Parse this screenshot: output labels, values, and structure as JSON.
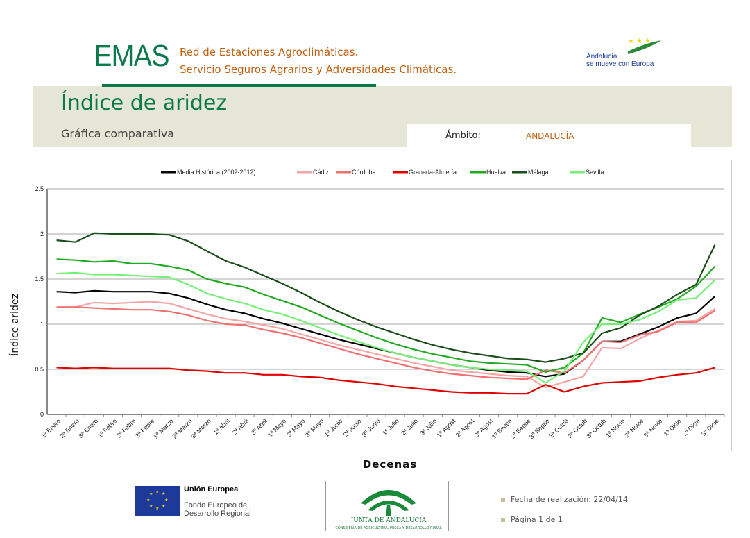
{
  "header": {
    "brand": "EMAS",
    "line1": "Red de Estaciones Agroclimáticas.",
    "line2": "Servicio Seguros Agrarios  y Adversidades Climáticas.",
    "logo_text1": "Andalucía",
    "logo_text2": "se mueve con Europa"
  },
  "page": {
    "title": "Índice de aridez",
    "subtitle": "Gráfica comparativa",
    "ambito_label": "Ámbito:",
    "ambito_value": "ANDALUCÍA"
  },
  "footer": {
    "eu_title": "Unión Europea",
    "eu_fund": "Fondo Europeo de Desarrollo Regional",
    "junta": "JUNTA DE ANDALUCIA",
    "junta_sub": "CONSEJERÍA DE AGRICULTURA, PESCA Y DESARROLLO RURAL",
    "fecha": "Fecha de realización:  22/04/14",
    "pagina": "Página 1 de 1"
  },
  "chart_data": {
    "type": "line",
    "title": "",
    "xlabel": "Decenas",
    "ylabel": "Índice aridez",
    "ylim": [
      0,
      2.5
    ],
    "yticks": [
      0,
      0.5,
      1,
      1.5,
      2,
      2.5
    ],
    "ytick_labels": [
      "0",
      "0.5",
      "1",
      "1.5",
      "2",
      "2.5"
    ],
    "grid": true,
    "legend": "top",
    "categories": [
      "1º Enero",
      "2ª Enero",
      "3ª Enero",
      "1º Febre",
      "2ª Febre",
      "3ª Febre",
      "1º Marzo",
      "2ª Marzo",
      "3ª Marzo",
      "1º Abril",
      "2ª Abril",
      "3ª Abril",
      "1º Mayo",
      "2ª Mayo",
      "3ª Mayo",
      "1º Junio",
      "2ª Junio",
      "3ª Junio",
      "1º Julio",
      "2ª Julio",
      "3ª Julio",
      "1º Agost",
      "2ª Agost",
      "3ª Agost",
      "1º Septie",
      "2ª Septie",
      "3ª Septie",
      "1ª Octub",
      "2ª Octub",
      "3ª Octub",
      "1ª Novie",
      "2ª Novie",
      "3ª Novie",
      "1ª Dicie",
      "2ª Dicie",
      "3ª Dicie"
    ],
    "series": [
      {
        "name": "Media Histórica (2002-2012)",
        "color": "#000000",
        "values": [
          1.36,
          1.35,
          1.37,
          1.36,
          1.36,
          1.36,
          1.34,
          1.29,
          1.22,
          1.16,
          1.12,
          1.06,
          1.01,
          0.95,
          0.89,
          0.83,
          0.78,
          0.73,
          0.68,
          0.63,
          0.59,
          0.55,
          0.52,
          0.49,
          0.47,
          0.46,
          0.42,
          0.45,
          0.6,
          0.81,
          0.81,
          0.89,
          0.97,
          1.07,
          1.12,
          1.31
        ]
      },
      {
        "name": "Cádiz",
        "color": "#f4a6a6",
        "values": [
          1.19,
          1.19,
          1.24,
          1.23,
          1.24,
          1.25,
          1.23,
          1.17,
          1.11,
          1.06,
          1.03,
          0.99,
          0.95,
          0.89,
          0.83,
          0.77,
          0.72,
          0.67,
          0.62,
          0.57,
          0.53,
          0.49,
          0.47,
          0.45,
          0.43,
          0.42,
          0.3,
          0.36,
          0.42,
          0.74,
          0.73,
          0.84,
          0.93,
          1.03,
          1.04,
          1.17
        ]
      },
      {
        "name": "Córdoba",
        "color": "#f07070",
        "values": [
          1.19,
          1.19,
          1.18,
          1.17,
          1.16,
          1.16,
          1.14,
          1.1,
          1.04,
          1.0,
          0.99,
          0.94,
          0.9,
          0.85,
          0.79,
          0.73,
          0.67,
          0.62,
          0.57,
          0.52,
          0.48,
          0.45,
          0.43,
          0.41,
          0.4,
          0.39,
          0.49,
          0.46,
          0.6,
          0.81,
          0.8,
          0.88,
          0.92,
          1.02,
          1.02,
          1.15
        ]
      },
      {
        "name": "Granada-Almería",
        "color": "#e00000",
        "values": [
          0.52,
          0.51,
          0.52,
          0.51,
          0.51,
          0.51,
          0.51,
          0.49,
          0.48,
          0.46,
          0.46,
          0.44,
          0.44,
          0.42,
          0.41,
          0.38,
          0.36,
          0.34,
          0.31,
          0.29,
          0.27,
          0.25,
          0.24,
          0.24,
          0.23,
          0.23,
          0.33,
          0.25,
          0.31,
          0.35,
          0.36,
          0.37,
          0.41,
          0.44,
          0.46,
          0.52
        ]
      },
      {
        "name": "Huelva",
        "color": "#22aa22",
        "values": [
          1.72,
          1.71,
          1.69,
          1.7,
          1.67,
          1.67,
          1.64,
          1.6,
          1.5,
          1.45,
          1.41,
          1.33,
          1.26,
          1.19,
          1.1,
          1.01,
          0.93,
          0.85,
          0.78,
          0.72,
          0.67,
          0.63,
          0.59,
          0.57,
          0.56,
          0.55,
          0.47,
          0.52,
          0.68,
          1.07,
          1.02,
          1.11,
          1.19,
          1.28,
          1.42,
          1.64
        ]
      },
      {
        "name": "Málaga",
        "color": "#1a4d1a",
        "values": [
          1.93,
          1.91,
          2.01,
          2.0,
          2.0,
          2.0,
          1.99,
          1.92,
          1.81,
          1.7,
          1.63,
          1.54,
          1.45,
          1.35,
          1.24,
          1.14,
          1.05,
          0.97,
          0.9,
          0.83,
          0.77,
          0.72,
          0.68,
          0.65,
          0.62,
          0.61,
          0.58,
          0.62,
          0.68,
          0.9,
          0.96,
          1.1,
          1.2,
          1.33,
          1.44,
          1.88
        ]
      },
      {
        "name": "Sevilla",
        "color": "#77ee77",
        "values": [
          1.56,
          1.57,
          1.55,
          1.55,
          1.54,
          1.53,
          1.52,
          1.44,
          1.34,
          1.28,
          1.23,
          1.16,
          1.11,
          1.04,
          0.96,
          0.88,
          0.81,
          0.74,
          0.68,
          0.63,
          0.59,
          0.55,
          0.52,
          0.5,
          0.49,
          0.48,
          0.35,
          0.48,
          0.8,
          1.0,
          1.0,
          1.05,
          1.14,
          1.27,
          1.29,
          1.49
        ]
      }
    ]
  }
}
